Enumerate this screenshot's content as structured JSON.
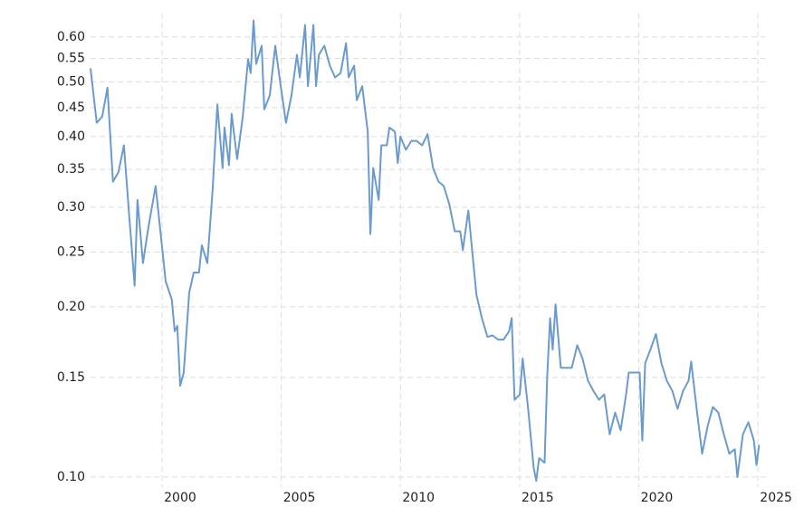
{
  "chart_data": {
    "type": "line",
    "log_y": true,
    "grid": true,
    "color": "#6b9bcd",
    "xlim": [
      1997,
      2025.3
    ],
    "xticks": [
      2000,
      2005,
      2010,
      2015,
      2020,
      2025
    ],
    "ylim": [
      0.096,
      0.66
    ],
    "yticks": [
      {
        "value": 0.1,
        "label": "0.10"
      },
      0.15,
      {
        "value": 0.2,
        "label": "0.20"
      },
      0.25,
      {
        "value": 0.3,
        "label": "0.30"
      },
      0.35,
      {
        "value": 0.4,
        "label": "0.40"
      },
      0.45,
      {
        "value": 0.5,
        "label": "0.50"
      },
      0.55,
      {
        "value": 0.6,
        "label": "0.60"
      }
    ],
    "x": [
      1997.0,
      1997.26,
      1997.49,
      1997.71,
      1997.94,
      1998.17,
      1998.4,
      1998.63,
      1998.85,
      1998.97,
      1999.2,
      1999.43,
      1999.73,
      1999.96,
      2000.15,
      2000.41,
      2000.53,
      2000.64,
      2000.76,
      2000.91,
      2001.14,
      2001.33,
      2001.55,
      2001.67,
      2001.9,
      2002.12,
      2002.32,
      2002.54,
      2002.62,
      2002.81,
      2002.92,
      2003.15,
      2003.38,
      2003.61,
      2003.72,
      2003.84,
      2003.95,
      2004.18,
      2004.29,
      2004.52,
      2004.75,
      2004.98,
      2005.2,
      2005.43,
      2005.66,
      2005.78,
      2006.0,
      2006.12,
      2006.35,
      2006.46,
      2006.58,
      2006.81,
      2007.04,
      2007.26,
      2007.49,
      2007.72,
      2007.83,
      2008.06,
      2008.17,
      2008.4,
      2008.63,
      2008.74,
      2008.86,
      2009.09,
      2009.2,
      2009.43,
      2009.54,
      2009.77,
      2009.89,
      2010.0,
      2010.23,
      2010.46,
      2010.68,
      2010.91,
      2011.14,
      2011.37,
      2011.6,
      2011.82,
      2012.05,
      2012.28,
      2012.51,
      2012.62,
      2012.85,
      2012.96,
      2013.19,
      2013.42,
      2013.65,
      2013.87,
      2014.1,
      2014.33,
      2014.56,
      2014.67,
      2014.79,
      2015.01,
      2015.13,
      2015.36,
      2015.59,
      2015.7,
      2015.82,
      2016.05,
      2016.16,
      2016.28,
      2016.39,
      2016.51,
      2016.73,
      2016.96,
      2017.19,
      2017.42,
      2017.64,
      2017.87,
      2018.1,
      2018.33,
      2018.55,
      2018.78,
      2019.01,
      2019.24,
      2019.47,
      2019.58,
      2019.81,
      2020.04,
      2020.15,
      2020.27,
      2020.49,
      2020.72,
      2020.95,
      2021.18,
      2021.41,
      2021.63,
      2021.86,
      2022.09,
      2022.2,
      2022.43,
      2022.66,
      2022.89,
      2023.11,
      2023.34,
      2023.57,
      2023.8,
      2024.03,
      2024.14,
      2024.37,
      2024.6,
      2024.83,
      2024.94,
      2025.05
    ],
    "values": [
      0.528,
      0.423,
      0.434,
      0.488,
      0.333,
      0.346,
      0.386,
      0.287,
      0.218,
      0.309,
      0.239,
      0.277,
      0.327,
      0.265,
      0.222,
      0.206,
      0.181,
      0.185,
      0.145,
      0.153,
      0.212,
      0.23,
      0.23,
      0.257,
      0.239,
      0.321,
      0.456,
      0.352,
      0.415,
      0.356,
      0.439,
      0.365,
      0.431,
      0.548,
      0.518,
      0.642,
      0.538,
      0.579,
      0.447,
      0.473,
      0.579,
      0.491,
      0.423,
      0.473,
      0.558,
      0.509,
      0.63,
      0.491,
      0.63,
      0.491,
      0.558,
      0.579,
      0.534,
      0.509,
      0.518,
      0.585,
      0.509,
      0.534,
      0.464,
      0.491,
      0.408,
      0.269,
      0.352,
      0.309,
      0.386,
      0.386,
      0.415,
      0.408,
      0.359,
      0.4,
      0.379,
      0.393,
      0.393,
      0.386,
      0.404,
      0.352,
      0.333,
      0.327,
      0.304,
      0.272,
      0.272,
      0.252,
      0.296,
      0.265,
      0.21,
      0.191,
      0.177,
      0.178,
      0.175,
      0.175,
      0.181,
      0.191,
      0.137,
      0.14,
      0.162,
      0.132,
      0.104,
      0.0985,
      0.108,
      0.106,
      0.151,
      0.191,
      0.168,
      0.202,
      0.156,
      0.156,
      0.156,
      0.171,
      0.162,
      0.148,
      0.142,
      0.137,
      0.14,
      0.119,
      0.13,
      0.121,
      0.14,
      0.153,
      0.153,
      0.153,
      0.116,
      0.159,
      0.168,
      0.179,
      0.159,
      0.148,
      0.142,
      0.132,
      0.142,
      0.148,
      0.16,
      0.132,
      0.11,
      0.123,
      0.133,
      0.13,
      0.119,
      0.11,
      0.112,
      0.1,
      0.119,
      0.125,
      0.116,
      0.105,
      0.114
    ]
  }
}
